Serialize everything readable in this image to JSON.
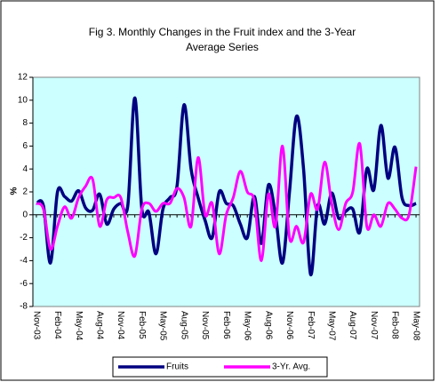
{
  "chart_data": {
    "type": "line",
    "title": "Fig 3. Monthly Changes in the Fruit index and the 3-Year Average Series",
    "y_label": "%",
    "categories": [
      "Nov-03",
      null,
      null,
      "Feb-04",
      null,
      null,
      "May-04",
      null,
      null,
      "Aug-04",
      null,
      null,
      "Nov-04",
      null,
      null,
      "Feb-05",
      null,
      null,
      "May-05",
      null,
      null,
      "Aug-05",
      null,
      null,
      "Nov-05",
      null,
      null,
      "Feb-06",
      null,
      null,
      "May-06",
      null,
      null,
      "Aug-06",
      null,
      null,
      "Nov-06",
      null,
      null,
      "Feb-07",
      null,
      null,
      "May-07",
      null,
      null,
      "Aug-07",
      null,
      null,
      "Nov-07",
      null,
      null,
      "Feb-08",
      null,
      null,
      "May-08"
    ],
    "series": [
      {
        "name": "Fruits",
        "color": "#000080",
        "values": [
          1,
          0.8,
          -4.2,
          2,
          1.6,
          1.2,
          2.1,
          0.6,
          0.4,
          1.8,
          -0.8,
          0.5,
          1,
          0.8,
          10.2,
          0.5,
          0.2,
          -3.4,
          0.5,
          1.5,
          2.5,
          9.6,
          4,
          1.5,
          -0.5,
          -2,
          2,
          1,
          0.8,
          -0.8,
          -2,
          1.6,
          -2.5,
          2.6,
          0,
          -4.2,
          2,
          8.6,
          4,
          -5.2,
          0.8,
          -0.8,
          1.9,
          -0.3,
          0.3,
          0.5,
          -1.5,
          4,
          2.2,
          7.8,
          3.2,
          5.9,
          1.5,
          0.8,
          1
        ]
      },
      {
        "name": "3-Yr. Avg.",
        "color": "#ff00ff",
        "values": [
          1,
          0.5,
          -3,
          -1,
          0.7,
          -0.3,
          1.5,
          2.5,
          3.1,
          -1,
          1.3,
          1.5,
          1.5,
          -1.5,
          -3.6,
          0.5,
          1,
          0.3,
          1,
          1,
          2.3,
          1.5,
          -1,
          5,
          0,
          1,
          -3.4,
          0,
          1.5,
          3.8,
          2,
          1.2,
          -4,
          1.8,
          -1,
          6,
          -2,
          -1,
          -2.4,
          1.8,
          0.5,
          4.6,
          1,
          -1.3,
          1,
          2,
          6.2,
          -1,
          0,
          -1,
          1,
          0.5,
          -0.3,
          0,
          4.2
        ]
      }
    ],
    "ylim": [
      -8,
      12
    ],
    "yticks": [
      -8,
      -6,
      -4,
      -2,
      0,
      2,
      4,
      6,
      8,
      10,
      12
    ],
    "plot_background": "#ccffff",
    "legend": "bottom"
  }
}
